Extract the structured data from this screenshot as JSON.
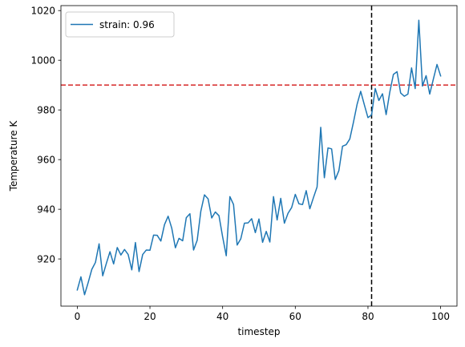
{
  "chart_data": {
    "type": "line",
    "title": "",
    "xlabel": "timestep",
    "ylabel": "Temperature K",
    "xlim": [
      -4.5,
      104.5
    ],
    "ylim": [
      901,
      1022
    ],
    "xticks": [
      0,
      20,
      40,
      60,
      80,
      100
    ],
    "yticks": [
      920,
      940,
      960,
      980,
      1000,
      1020
    ],
    "grid": false,
    "legend_position": "top-left",
    "series": [
      {
        "name": "strain: 0.96",
        "color": "#1f77b4",
        "x": [
          0,
          1,
          2,
          3,
          4,
          5,
          6,
          7,
          8,
          9,
          10,
          11,
          12,
          13,
          14,
          15,
          16,
          17,
          18,
          19,
          20,
          21,
          22,
          23,
          24,
          25,
          26,
          27,
          28,
          29,
          30,
          31,
          32,
          33,
          34,
          35,
          36,
          37,
          38,
          39,
          40,
          41,
          42,
          43,
          44,
          45,
          46,
          47,
          48,
          49,
          50,
          51,
          52,
          53,
          54,
          55,
          56,
          57,
          58,
          59,
          60,
          61,
          62,
          63,
          64,
          65,
          66,
          67,
          68,
          69,
          70,
          71,
          72,
          73,
          74,
          75,
          76,
          77,
          78,
          79,
          80,
          81,
          82,
          83,
          84,
          85,
          86,
          87,
          88,
          89,
          90,
          91,
          92,
          93,
          94,
          95,
          96,
          97,
          98,
          99,
          100
        ],
        "y": [
          907.5,
          912.8,
          905.6,
          910.5,
          915.8,
          918.6,
          926.1,
          913.2,
          918.2,
          922.9,
          918.0,
          924.6,
          921.6,
          923.8,
          921.8,
          915.6,
          926.6,
          914.9,
          921.8,
          923.6,
          923.5,
          929.6,
          929.5,
          927.2,
          933.8,
          937.2,
          932.4,
          924.5,
          928.3,
          927.3,
          936.6,
          938.2,
          923.6,
          927.5,
          939.2,
          945.8,
          944.2,
          936.5,
          938.9,
          937.4,
          928.9,
          921.3,
          945.1,
          941.9,
          925.6,
          928.1,
          934.4,
          934.5,
          936.2,
          930.6,
          936.1,
          926.7,
          931.1,
          926.8,
          945.1,
          935.7,
          944.4,
          934.4,
          938.4,
          940.7,
          946.0,
          942.2,
          941.9,
          947.5,
          940.2,
          944.7,
          949.0,
          973.0,
          952.7,
          964.7,
          964.3,
          952.0,
          955.6,
          965.4,
          966.0,
          968.3,
          975.0,
          982.2,
          987.5,
          982.1,
          976.9,
          978.0,
          988.6,
          983.8,
          986.5,
          978.1,
          987.1,
          994.3,
          995.4,
          986.8,
          985.5,
          986.4,
          996.9,
          988.6,
          1016.1,
          989.6,
          993.8,
          986.4,
          992.4,
          998.3,
          993.7
        ]
      }
    ],
    "reference_lines": [
      {
        "orientation": "horizontal",
        "value": 990,
        "color": "#d62728",
        "style": "dashed"
      },
      {
        "orientation": "vertical",
        "value": 81,
        "color": "#000000",
        "style": "dashed"
      }
    ]
  }
}
